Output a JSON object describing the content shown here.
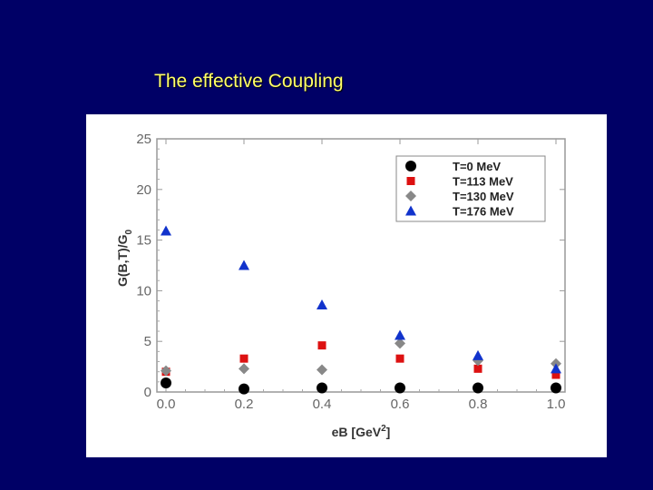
{
  "slide": {
    "title": "The effective Coupling"
  },
  "chart_data": {
    "type": "scatter",
    "title": "",
    "xlabel": "eB [GeV",
    "xlabel_sup": "2",
    "xlabel_suffix": "]",
    "ylabel": "G(B,T)/G",
    "ylabel_sub": "0",
    "xlim": [
      0.0,
      1.0
    ],
    "ylim": [
      0,
      25
    ],
    "xticks": [
      "0.0",
      "0.2",
      "0.4",
      "0.6",
      "0.8",
      "1.0"
    ],
    "yticks": [
      "0",
      "5",
      "10",
      "15",
      "20",
      "25"
    ],
    "grid": false,
    "legend_position": "top-right",
    "x": [
      0.0,
      0.2,
      0.4,
      0.6,
      0.8,
      1.0
    ],
    "series": [
      {
        "name": "T=0 MeV",
        "marker": "circle",
        "color": "#000000",
        "values": [
          0.9,
          0.3,
          0.4,
          0.4,
          0.4,
          0.4
        ]
      },
      {
        "name": "T=113 MeV",
        "marker": "square",
        "color": "#dd1111",
        "values": [
          2.0,
          3.3,
          4.6,
          3.3,
          2.3,
          1.7
        ]
      },
      {
        "name": "T=130 MeV",
        "marker": "diamond",
        "color": "#888888",
        "values": [
          2.1,
          2.3,
          2.2,
          4.8,
          3.1,
          2.8
        ]
      },
      {
        "name": "T=176 MeV",
        "marker": "triangle",
        "color": "#1133cc",
        "values": [
          15.9,
          12.5,
          8.6,
          5.6,
          3.6,
          2.3
        ]
      }
    ]
  }
}
